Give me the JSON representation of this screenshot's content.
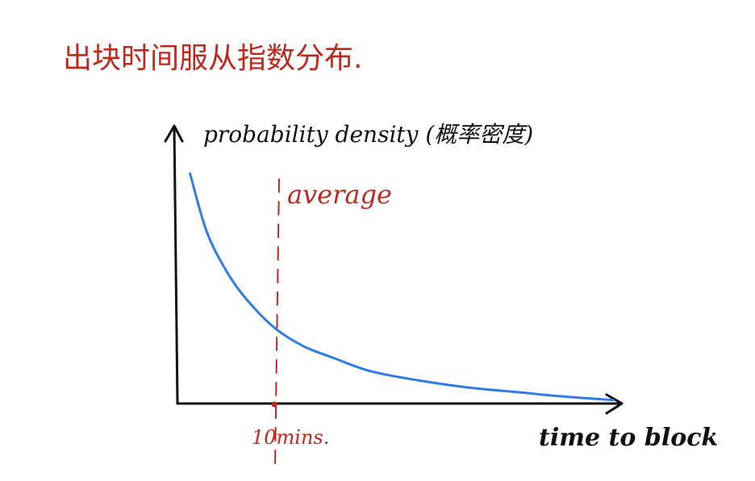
{
  "heading": "出块时间服从指数分布.",
  "colors": {
    "ink": "#111111",
    "red": "#c0281e",
    "curve": "#2f7be8"
  },
  "chart_data": {
    "type": "line",
    "title": "出块时间服从指数分布.",
    "ylabel": "probability density (概率密度)",
    "xlabel": "time to block",
    "annotations": [
      {
        "type": "vline",
        "x": 10,
        "label": "average",
        "tick_label": "10mins."
      }
    ],
    "xlim": [
      0,
      50
    ],
    "series": [
      {
        "color": "#2f7be8",
        "x": [
          1.3,
          3,
          5,
          7,
          10,
          13,
          16,
          20,
          25,
          30,
          35,
          40,
          45
        ],
        "y": [
          1.0,
          0.75,
          0.58,
          0.46,
          0.33,
          0.25,
          0.2,
          0.14,
          0.1,
          0.07,
          0.05,
          0.03,
          0.015
        ]
      }
    ]
  }
}
